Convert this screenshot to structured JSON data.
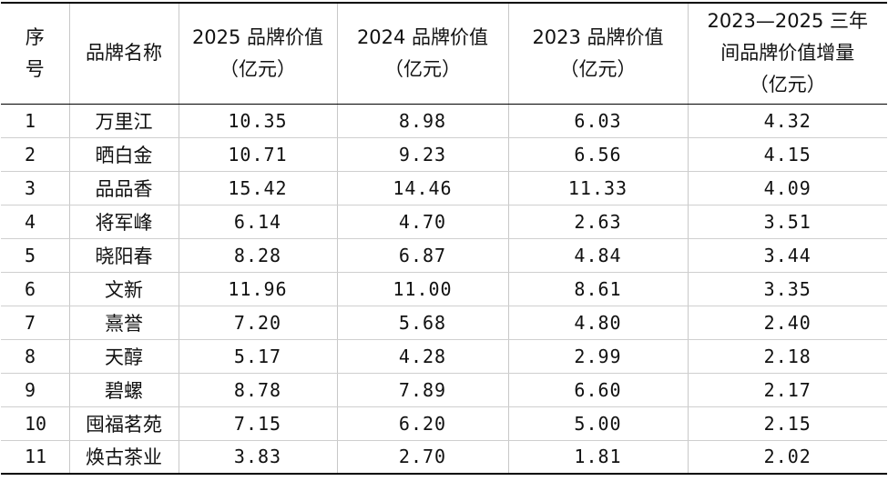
{
  "table": {
    "headers": {
      "index": [
        "序",
        "号"
      ],
      "brand": "品牌名称",
      "v2025": [
        "2025 品牌价值",
        "（亿元）"
      ],
      "v2024": [
        "2024 品牌价值",
        "（亿元）"
      ],
      "v2023": [
        "2023 品牌价值",
        "（亿元）"
      ],
      "increase": [
        "2023—2025 三年",
        "间品牌价值增量",
        "（亿元）"
      ]
    },
    "rows": [
      {
        "no": "1",
        "brand": "万里江",
        "v2025": "10.35",
        "v2024": "8.98",
        "v2023": "6.03",
        "increase": "4.32"
      },
      {
        "no": "2",
        "brand": "晒白金",
        "v2025": "10.71",
        "v2024": "9.23",
        "v2023": "6.56",
        "increase": "4.15"
      },
      {
        "no": "3",
        "brand": "品品香",
        "v2025": "15.42",
        "v2024": "14.46",
        "v2023": "11.33",
        "increase": "4.09"
      },
      {
        "no": "4",
        "brand": "将军峰",
        "v2025": "6.14",
        "v2024": "4.70",
        "v2023": "2.63",
        "increase": "3.51"
      },
      {
        "no": "5",
        "brand": "晓阳春",
        "v2025": "8.28",
        "v2024": "6.87",
        "v2023": "4.84",
        "increase": "3.44"
      },
      {
        "no": "6",
        "brand": "文新",
        "v2025": "11.96",
        "v2024": "11.00",
        "v2023": "8.61",
        "increase": "3.35"
      },
      {
        "no": "7",
        "brand": "熹誉",
        "v2025": "7.20",
        "v2024": "5.68",
        "v2023": "4.80",
        "increase": "2.40"
      },
      {
        "no": "8",
        "brand": "天醇",
        "v2025": "5.17",
        "v2024": "4.28",
        "v2023": "2.99",
        "increase": "2.18"
      },
      {
        "no": "9",
        "brand": "碧螺",
        "v2025": "8.78",
        "v2024": "7.89",
        "v2023": "6.60",
        "increase": "2.17"
      },
      {
        "no": "10",
        "brand": "囤福茗苑",
        "v2025": "7.15",
        "v2024": "6.20",
        "v2023": "5.00",
        "increase": "2.15"
      },
      {
        "no": "11",
        "brand": "焕古茶业",
        "v2025": "3.83",
        "v2024": "2.70",
        "v2023": "1.81",
        "increase": "2.02"
      }
    ]
  }
}
